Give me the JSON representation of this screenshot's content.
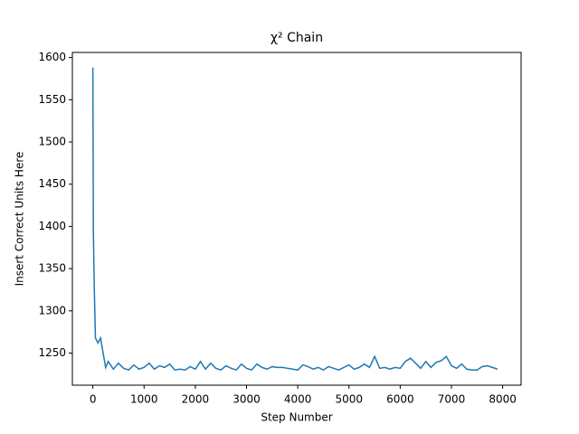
{
  "chart_data": {
    "type": "line",
    "title": "χ² Chain",
    "x_label": "Step Number",
    "y_label": "Insert Correct Units Here",
    "x": [
      0,
      10,
      20,
      30,
      50,
      100,
      150,
      200,
      250,
      300,
      400,
      500,
      600,
      700,
      800,
      900,
      1000,
      1100,
      1200,
      1300,
      1400,
      1500,
      1600,
      1700,
      1800,
      1900,
      2000,
      2100,
      2200,
      2300,
      2400,
      2500,
      2600,
      2700,
      2800,
      2900,
      3000,
      3100,
      3200,
      3300,
      3400,
      3500,
      3600,
      3700,
      3800,
      3900,
      4000,
      4100,
      4200,
      4300,
      4400,
      4500,
      4600,
      4700,
      4800,
      4900,
      5000,
      5100,
      5200,
      5300,
      5400,
      5500,
      5600,
      5700,
      5800,
      5900,
      6000,
      6100,
      6200,
      6300,
      6400,
      6500,
      6600,
      6700,
      6800,
      6900,
      7000,
      7100,
      7200,
      7300,
      7400,
      7500,
      7600,
      7700,
      7800,
      7900
    ],
    "series": [
      {
        "color": "#1f77b4",
        "values": [
          1588,
          1395,
          1355,
          1320,
          1268,
          1262,
          1268,
          1250,
          1233,
          1240,
          1231,
          1238,
          1232,
          1230,
          1236,
          1231,
          1233,
          1238,
          1231,
          1235,
          1233,
          1237,
          1230,
          1231,
          1230,
          1234,
          1231,
          1240,
          1231,
          1238,
          1232,
          1230,
          1235,
          1232,
          1230,
          1237,
          1232,
          1230,
          1237,
          1233,
          1231,
          1234,
          1233,
          1233,
          1232,
          1231,
          1230,
          1236,
          1234,
          1231,
          1233,
          1230,
          1234,
          1232,
          1230,
          1233,
          1236,
          1231,
          1233,
          1237,
          1233,
          1246,
          1232,
          1233,
          1231,
          1233,
          1232,
          1240,
          1244,
          1238,
          1232,
          1240,
          1233,
          1239,
          1241,
          1246,
          1235,
          1232,
          1237,
          1231,
          1230,
          1230,
          1234,
          1235,
          1233,
          1231
        ]
      }
    ],
    "xlim": [
      -400,
      8360
    ],
    "ylim": [
      1212,
      1606
    ],
    "xticks": [
      0,
      1000,
      2000,
      3000,
      4000,
      5000,
      6000,
      7000,
      8000
    ],
    "yticks": [
      1250,
      1300,
      1350,
      1400,
      1450,
      1500,
      1550,
      1600
    ]
  }
}
